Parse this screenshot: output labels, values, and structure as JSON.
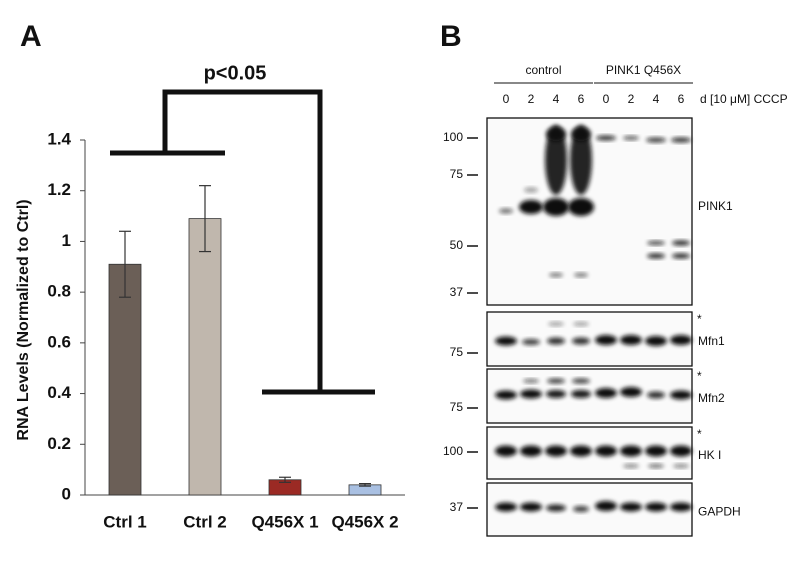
{
  "chart_data": {
    "type": "bar",
    "panel_label": "A",
    "y_label": "RNA Levels (Normalized to Ctrl)",
    "annotation": "p<0.05",
    "categories": [
      "Ctrl 1",
      "Ctrl 2",
      "Q456X 1",
      "Q456X 2"
    ],
    "series": [
      {
        "values": [
          0.91,
          1.09,
          0.06,
          0.04
        ],
        "errors": [
          0.13,
          0.13,
          0.01,
          0.005
        ],
        "colors": [
          "#6b5f57",
          "#c0b7ad",
          "#9b2a24",
          "#a9c0e2"
        ]
      }
    ],
    "ylim": [
      0,
      1.4
    ],
    "yticks": [
      0,
      0.2,
      0.4,
      0.6,
      0.8,
      1,
      1.2,
      1.4
    ],
    "grid": false
  },
  "blot": {
    "panel_label": "B",
    "treatment": "d [10 μM] CCCP",
    "groups": [
      {
        "label": "control",
        "lanes": [
          "0",
          "2",
          "4",
          "6"
        ]
      },
      {
        "label": "PINK1 Q456X",
        "lanes": [
          "0",
          "2",
          "4",
          "6"
        ]
      }
    ],
    "panels": [
      {
        "label": "PINK1",
        "markers": [
          "100",
          "75",
          "50",
          "37"
        ]
      },
      {
        "label": "Mfn1",
        "markers": [
          "75"
        ],
        "note": "*"
      },
      {
        "label": "Mfn2",
        "markers": [
          "75"
        ],
        "note": "*"
      },
      {
        "label": "HK I",
        "markers": [
          "100"
        ],
        "note": "*"
      },
      {
        "label": "GAPDH",
        "markers": [
          "37"
        ]
      }
    ]
  }
}
